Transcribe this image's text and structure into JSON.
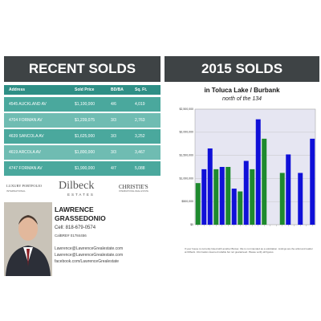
{
  "left": {
    "title": "RECENT SOLDS",
    "table": {
      "header": [
        "Address",
        "Sold Price",
        "BD/BA",
        "Sq. Ft."
      ],
      "rows": [
        [
          "4545 AUCKLAND AV",
          "$1,100,000",
          "4/6",
          "4,019"
        ],
        [
          "4704 FORMAN AV",
          "$1,239,075",
          "3/3",
          "2,763"
        ],
        [
          "4639 SANCOLA AV",
          "$1,625,000",
          "3/3",
          "3,252"
        ],
        [
          "4619 ARCOLA AV",
          "$1,800,000",
          "3/3",
          "3,467"
        ],
        [
          "4747 FORMAN AV",
          "$1,900,000",
          "4/7",
          "5,088"
        ]
      ]
    },
    "logos": [
      "LUXURY PORTFOLIO",
      "INTERNATIONAL",
      "Dilbeck",
      "ESTATES",
      "CHRISTIE'S",
      "INTERNATIONAL REAL ESTATE"
    ],
    "agent": {
      "first": "LAWRENCE",
      "last": "GRASSEDONIO",
      "cell": "Cell: 818-679-0574",
      "license": "CalBRE# 01784456",
      "email": "Lawrence@LawrenceGrealestate.com",
      "web": "Lawrence@LawrenceGrealestate.com",
      "facebook": "facebook.com/LawrenceGrealestate"
    }
  },
  "right": {
    "title": "2015 SOLDS",
    "subtitle": "in Toluca Lake / Burbank",
    "note": "north of the 134",
    "disclaimer": "If your house is currently listed with another Broker, this is not intended as a solicitation. Listings are the artist and realtor at Dilbeck. Information deemed reliable but not guaranteed. Please verify all figures."
  },
  "chart_data": {
    "type": "bar",
    "categories": [
      null,
      null,
      null,
      null,
      null,
      null,
      null,
      null,
      null,
      null,
      null,
      null,
      null,
      null,
      null,
      null,
      null,
      null,
      null,
      null
    ],
    "series": [
      {
        "color": "#1e8a2e",
        "values": [
          900000,
          null,
          null,
          1200000,
          null,
          1250000,
          null,
          720000,
          null,
          1200000,
          null,
          1860000,
          null,
          null,
          1120000,
          null,
          null,
          null,
          null,
          null
        ]
      },
      {
        "color": "#1010d8",
        "values": [
          null,
          1200000,
          1650000,
          null,
          1250000,
          null,
          780000,
          null,
          1380000,
          null,
          2280000,
          null,
          null,
          null,
          null,
          1520000,
          null,
          1120000,
          null,
          1860000
        ]
      }
    ],
    "ylim": [
      0,
      2500000
    ],
    "yticks": [
      {
        "value": 0,
        "label": "$0"
      },
      {
        "value": 500000,
        "label": "$500,000"
      },
      {
        "value": 1000000,
        "label": "$1,000,000"
      },
      {
        "value": 1500000,
        "label": "$1,500,000"
      },
      {
        "value": 2000000,
        "label": "$2,000,000"
      },
      {
        "value": 2500000,
        "label": "$2,500,000"
      }
    ],
    "grid": true
  }
}
